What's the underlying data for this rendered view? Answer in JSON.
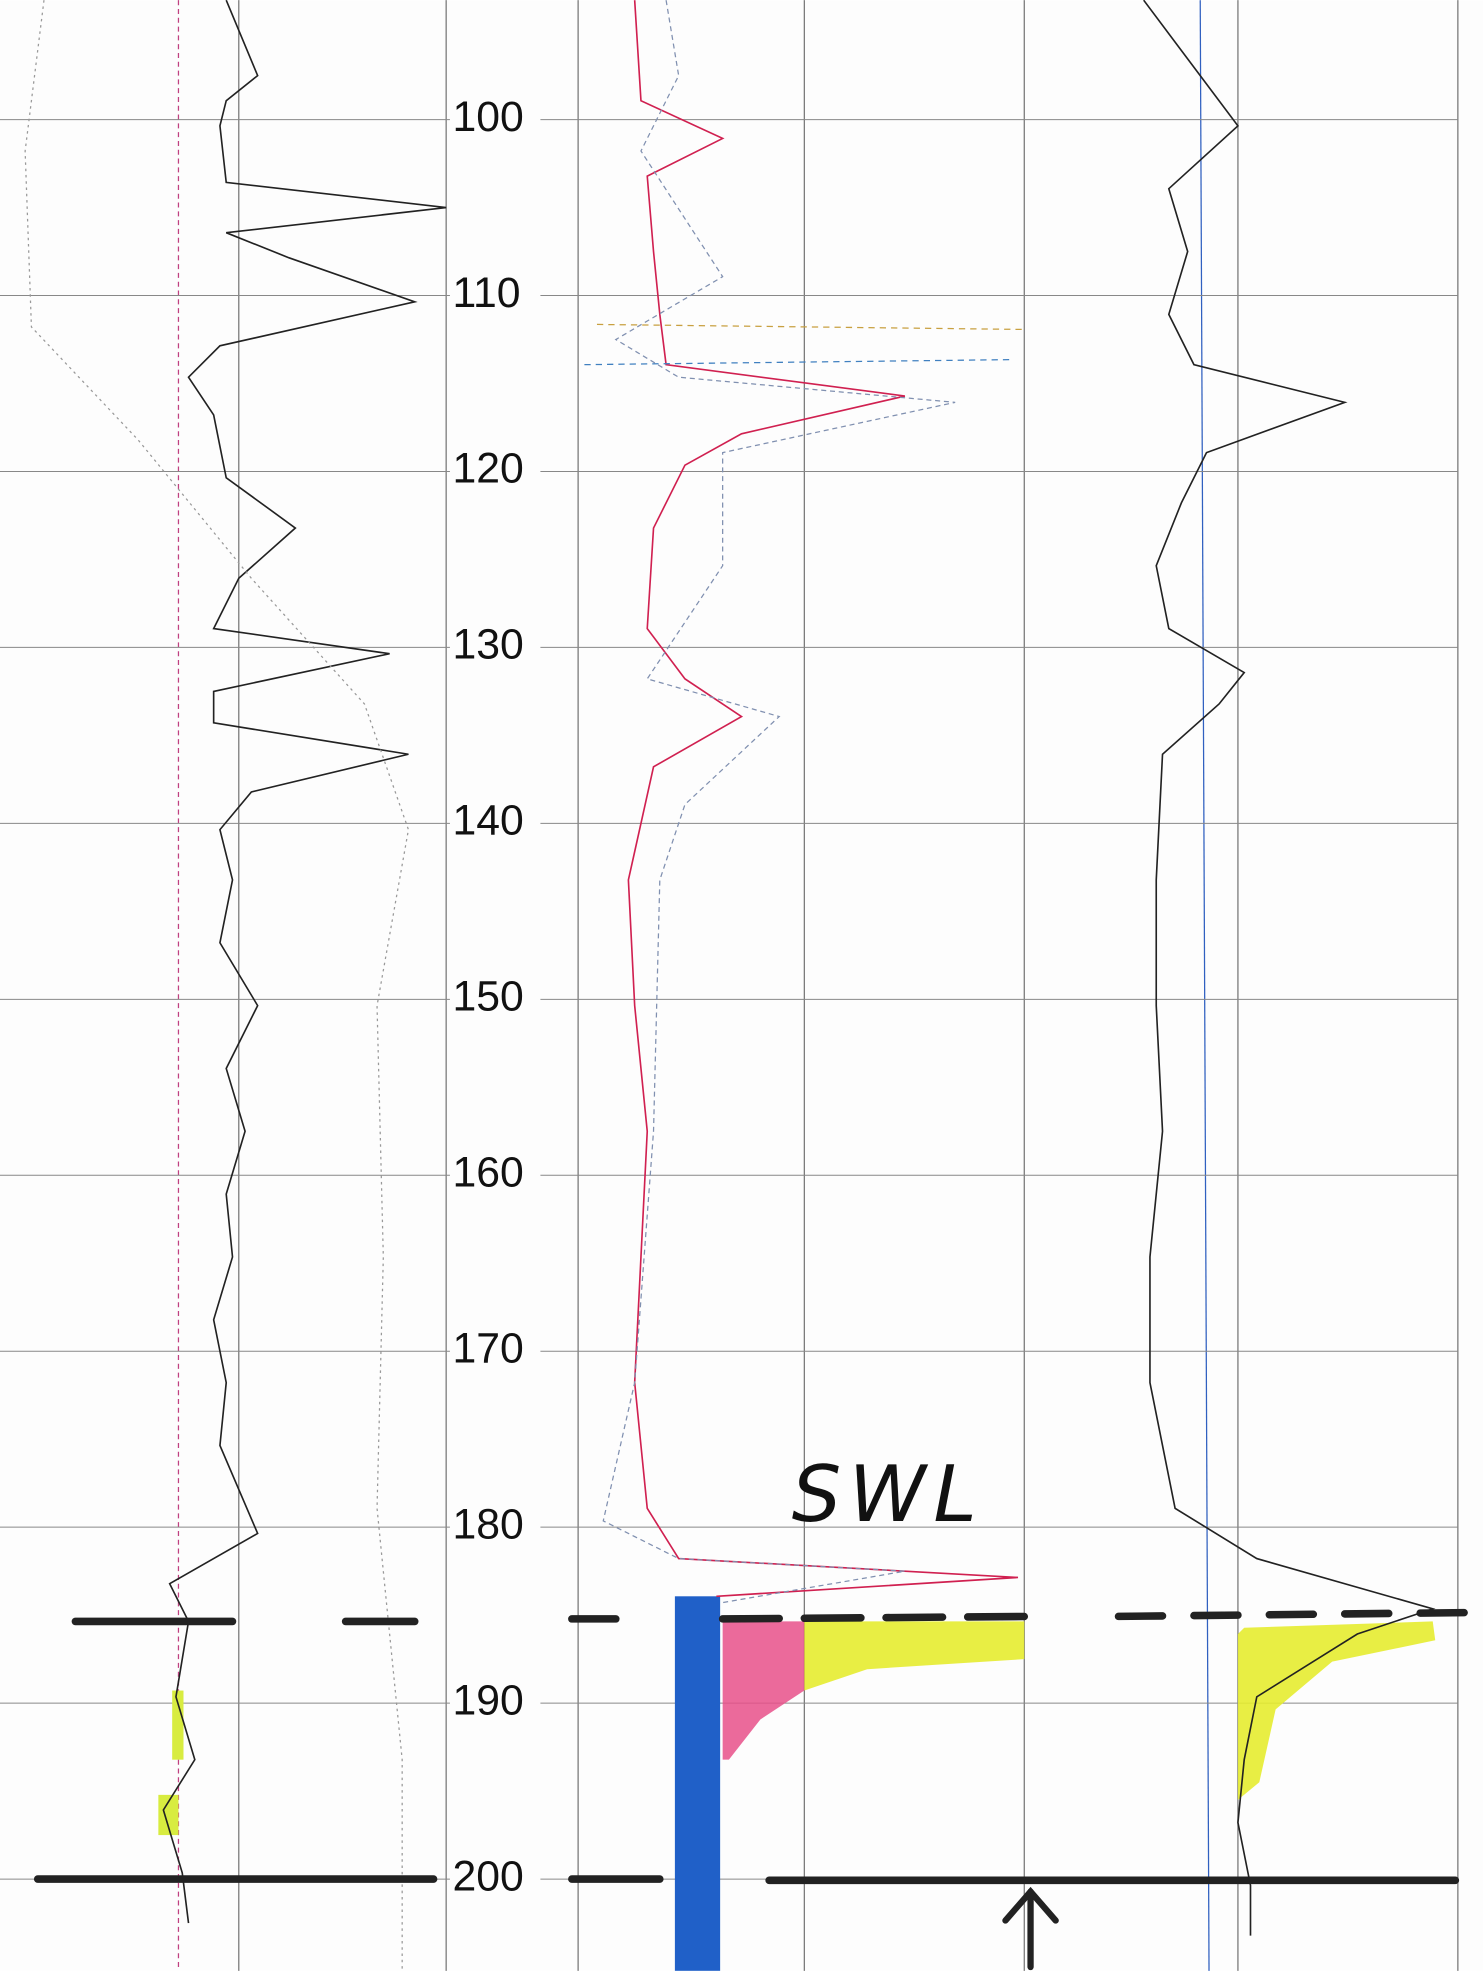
{
  "depth_labels": [
    100,
    110,
    120,
    130,
    140,
    150,
    160,
    170,
    180,
    190,
    200
  ],
  "annotation": "SWL"
}
